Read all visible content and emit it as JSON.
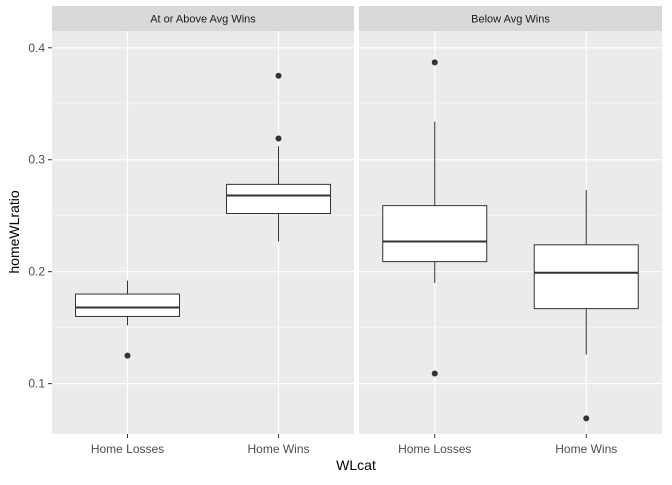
{
  "chart_data": {
    "type": "boxplot",
    "xlabel": "WLcat",
    "ylabel": "homeWLratio",
    "ylim": [
      0.055,
      0.415
    ],
    "y_ticks": [
      0.1,
      0.2,
      0.3,
      0.4
    ],
    "y_tick_labels": [
      "0.1",
      "0.2",
      "0.3",
      "0.4"
    ],
    "categories": [
      "Home Losses",
      "Home Wins"
    ],
    "grid": true,
    "colors": {
      "panel_bg": "#ebebeb",
      "strip_bg": "#d9d9d9",
      "grid_major": "#ffffff",
      "box_fill": "#ffffff",
      "line": "#333333",
      "tick_text": "#4d4d4d"
    },
    "facets": [
      {
        "label": "At or Above Avg Wins",
        "boxes": [
          {
            "category": "Home Losses",
            "lower_whisker": 0.152,
            "q1": 0.16,
            "median": 0.168,
            "q3": 0.18,
            "upper_whisker": 0.192,
            "outliers": [
              0.125
            ]
          },
          {
            "category": "Home Wins",
            "lower_whisker": 0.227,
            "q1": 0.252,
            "median": 0.268,
            "q3": 0.278,
            "upper_whisker": 0.312,
            "outliers": [
              0.319,
              0.375
            ]
          }
        ]
      },
      {
        "label": "Below Avg Wins",
        "boxes": [
          {
            "category": "Home Losses",
            "lower_whisker": 0.19,
            "q1": 0.209,
            "median": 0.227,
            "q3": 0.259,
            "upper_whisker": 0.334,
            "outliers": [
              0.109,
              0.387
            ]
          },
          {
            "category": "Home Wins",
            "lower_whisker": 0.126,
            "q1": 0.167,
            "median": 0.199,
            "q3": 0.224,
            "upper_whisker": 0.273,
            "outliers": [
              0.069
            ]
          }
        ]
      }
    ]
  }
}
